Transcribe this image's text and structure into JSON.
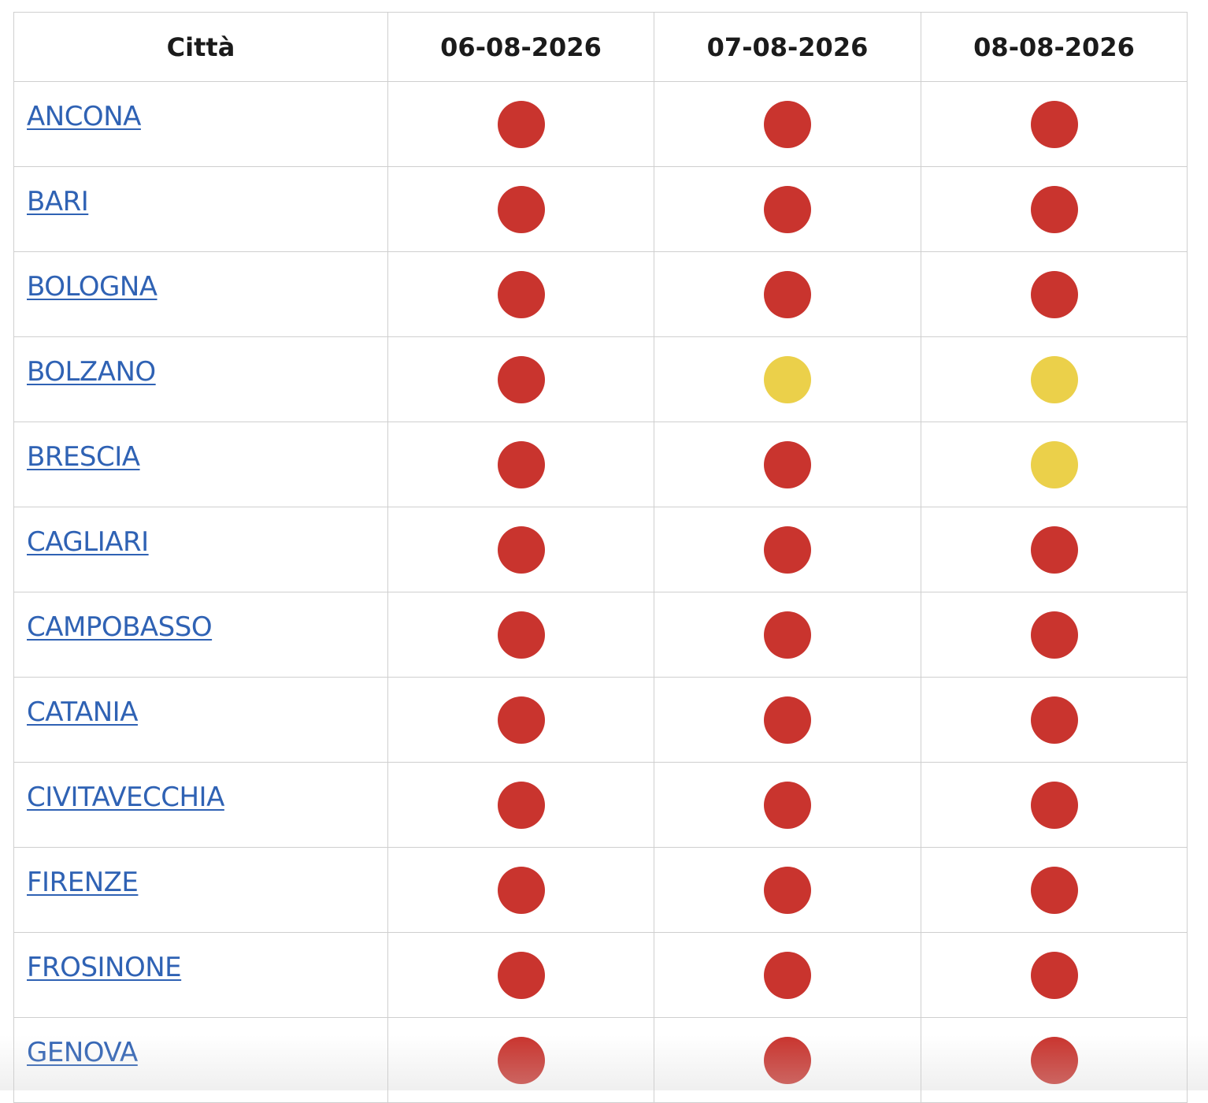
{
  "colors": {
    "red": "#c9342e",
    "yellow": "#ebd04a",
    "link": "#2f62b4"
  },
  "table": {
    "headers": [
      "Città",
      "06-08-2026",
      "07-08-2026",
      "08-08-2026"
    ],
    "rows": [
      {
        "city": "ANCONA",
        "levels": [
          "red",
          "red",
          "red"
        ]
      },
      {
        "city": "BARI",
        "levels": [
          "red",
          "red",
          "red"
        ]
      },
      {
        "city": "BOLOGNA",
        "levels": [
          "red",
          "red",
          "red"
        ]
      },
      {
        "city": "BOLZANO",
        "levels": [
          "red",
          "yellow",
          "yellow"
        ]
      },
      {
        "city": "BRESCIA",
        "levels": [
          "red",
          "red",
          "yellow"
        ]
      },
      {
        "city": "CAGLIARI",
        "levels": [
          "red",
          "red",
          "red"
        ]
      },
      {
        "city": "CAMPOBASSO",
        "levels": [
          "red",
          "red",
          "red"
        ]
      },
      {
        "city": "CATANIA",
        "levels": [
          "red",
          "red",
          "red"
        ]
      },
      {
        "city": "CIVITAVECCHIA",
        "levels": [
          "red",
          "red",
          "red"
        ]
      },
      {
        "city": "FIRENZE",
        "levels": [
          "red",
          "red",
          "red"
        ]
      },
      {
        "city": "FROSINONE",
        "levels": [
          "red",
          "red",
          "red"
        ]
      },
      {
        "city": "GENOVA",
        "levels": [
          "red",
          "red",
          "red"
        ]
      }
    ]
  }
}
